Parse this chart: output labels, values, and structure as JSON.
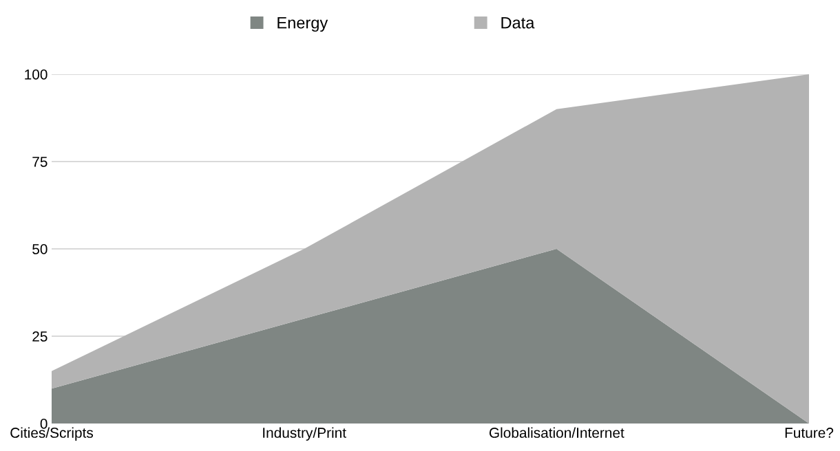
{
  "chart_data": {
    "type": "area",
    "stacked": true,
    "categories": [
      "Cities/Scripts",
      "Industry/Print",
      "Globalisation/Internet",
      "Future?"
    ],
    "series": [
      {
        "name": "Energy",
        "color": "#7f8683",
        "values": [
          10,
          30,
          50,
          0
        ]
      },
      {
        "name": "Data",
        "color": "#b3b3b3",
        "values": [
          5,
          20,
          40,
          100
        ]
      }
    ],
    "ylim": [
      0,
      100
    ],
    "yticks": [
      0,
      25,
      50,
      75,
      100
    ],
    "grid": "y",
    "legend": "top"
  }
}
